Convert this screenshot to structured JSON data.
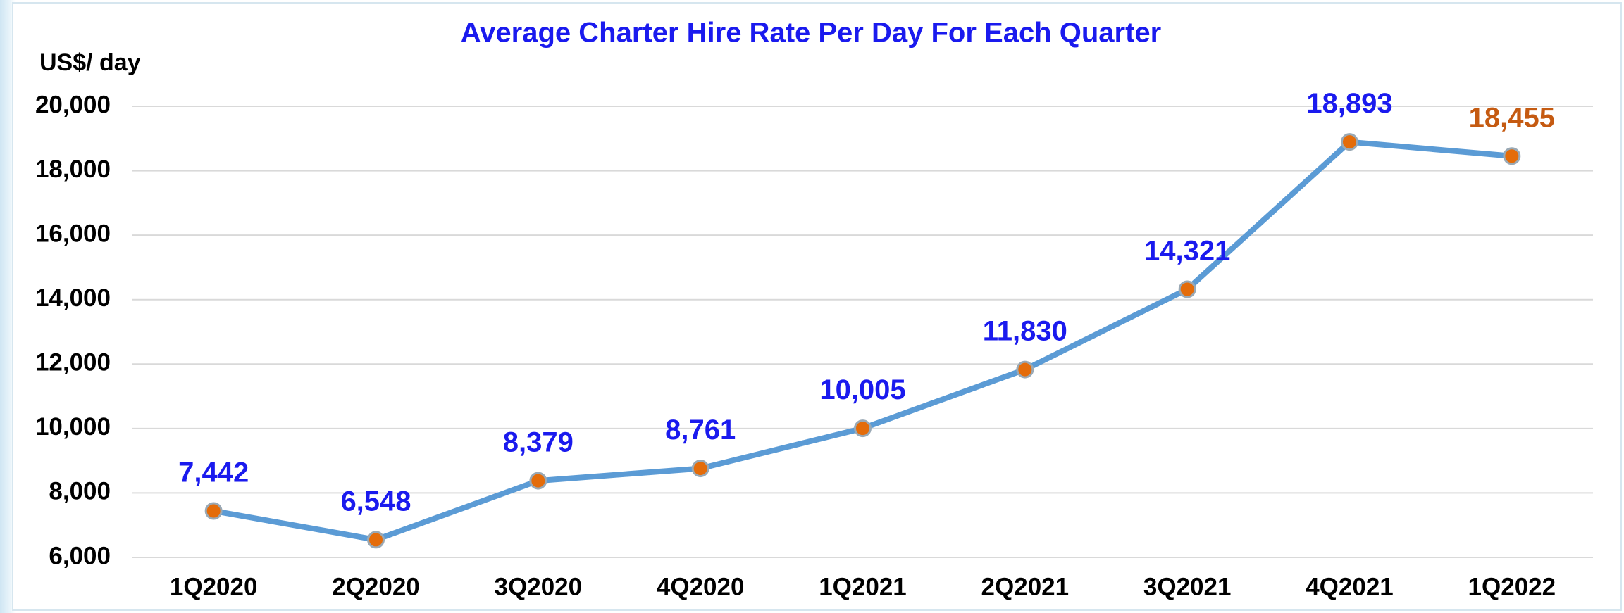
{
  "chart_data": {
    "type": "line",
    "title": "Average Charter Hire Rate Per Day For Each Quarter",
    "y_label": "US$/ day",
    "categories": [
      "1Q2020",
      "2Q2020",
      "3Q2020",
      "4Q2020",
      "1Q2021",
      "2Q2021",
      "3Q2021",
      "4Q2021",
      "1Q2022"
    ],
    "values": [
      7442,
      6548,
      8379,
      8761,
      10005,
      11830,
      14321,
      18893,
      18455
    ],
    "value_labels": [
      "7,442",
      "6,548",
      "8,379",
      "8,761",
      "10,005",
      "11,830",
      "14,321",
      "18,893",
      "18,455"
    ],
    "value_label_colors": [
      "#1a1aee",
      "#1a1aee",
      "#1a1aee",
      "#1a1aee",
      "#1a1aee",
      "#1a1aee",
      "#1a1aee",
      "#1a1aee",
      "#c55a11"
    ],
    "color": "#5b9bd5",
    "marker_color": "#e46c0a",
    "ylim": [
      6000,
      20000
    ],
    "yticks": [
      {
        "value": 6000,
        "label": "6,000"
      },
      {
        "value": 8000,
        "label": "8,000"
      },
      {
        "value": 10000,
        "label": "10,000"
      },
      {
        "value": 12000,
        "label": "12,000"
      },
      {
        "value": 14000,
        "label": "14,000"
      },
      {
        "value": 16000,
        "label": "16,000"
      },
      {
        "value": 18000,
        "label": "18,000"
      },
      {
        "value": 20000,
        "label": "20,000"
      }
    ],
    "grid": true
  }
}
